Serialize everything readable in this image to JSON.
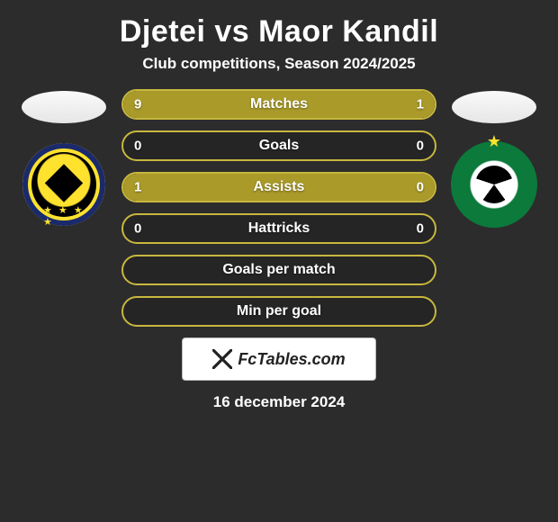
{
  "header": {
    "title": "Djetei vs Maor Kandil",
    "subtitle": "Club competitions, Season 2024/2025"
  },
  "colors": {
    "accent": "#a99a2a",
    "accent_border": "#c7b73e",
    "bg": "#2c2c2c"
  },
  "players": {
    "left": {
      "name": "Djetei",
      "club": "Maccabi Netanya"
    },
    "right": {
      "name": "Maor Kandil",
      "club": "Maccabi Haifa"
    }
  },
  "bars": [
    {
      "label": "Matches",
      "left": "9",
      "right": "1",
      "left_pct": 90,
      "right_pct": 10
    },
    {
      "label": "Goals",
      "left": "0",
      "right": "0",
      "left_pct": 0,
      "right_pct": 0
    },
    {
      "label": "Assists",
      "left": "1",
      "right": "0",
      "left_pct": 100,
      "right_pct": 0
    },
    {
      "label": "Hattricks",
      "left": "0",
      "right": "0",
      "left_pct": 0,
      "right_pct": 0
    },
    {
      "label": "Goals per match",
      "left": "",
      "right": "",
      "left_pct": 0,
      "right_pct": 0
    },
    {
      "label": "Min per goal",
      "left": "",
      "right": "",
      "left_pct": 0,
      "right_pct": 0
    }
  ],
  "footer": {
    "brand": "FcTables.com",
    "date": "16 december 2024"
  }
}
